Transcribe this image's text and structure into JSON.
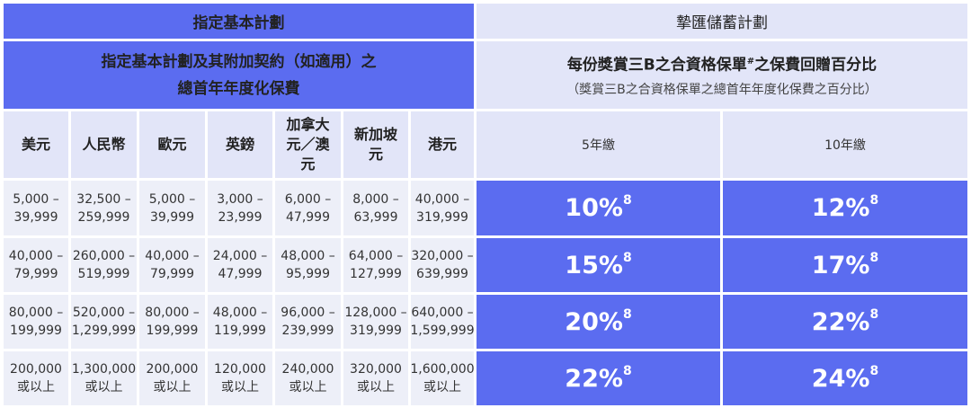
{
  "header": {
    "left": "指定基本計劃",
    "right": "摯匯儲蓄計劃"
  },
  "subheader": {
    "left_lines": [
      "指定基本計劃及其附加契約（如適用）之",
      "總首年年度化保費"
    ],
    "right_title": "每份獎賞三B之合資格保單",
    "right_title_mark": "#",
    "right_title_end": "之保費回贈百分比",
    "right_subtitle": "（獎賞三B之合資格保單之總首年年度化保費之百分比）"
  },
  "columns": {
    "currencies": [
      "美元",
      "人民幣",
      "歐元",
      "英鎊",
      "加拿大元／澳元",
      "新加坡元",
      "港元"
    ],
    "terms": [
      "5年繳",
      "10年繳"
    ]
  },
  "table": {
    "rows": [
      {
        "ranges": [
          [
            "5,000 –",
            "39,999"
          ],
          [
            "32,500 –",
            "259,999"
          ],
          [
            "5,000 –",
            "39,999"
          ],
          [
            "3,000 –",
            "23,999"
          ],
          [
            "6,000 –",
            "47,999"
          ],
          [
            "8,000 –",
            "63,999"
          ],
          [
            "40,000 –",
            "319,999"
          ]
        ],
        "rates": [
          {
            "rate": "10%",
            "note": "8"
          },
          {
            "rate": "12%",
            "note": "8"
          }
        ]
      },
      {
        "ranges": [
          [
            "40,000 –",
            "79,999"
          ],
          [
            "260,000 –",
            "519,999"
          ],
          [
            "40,000 –",
            "79,999"
          ],
          [
            "24,000 –",
            "47,999"
          ],
          [
            "48,000 –",
            "95,999"
          ],
          [
            "64,000 –",
            "127,999"
          ],
          [
            "320,000 –",
            "639,999"
          ]
        ],
        "rates": [
          {
            "rate": "15%",
            "note": "8"
          },
          {
            "rate": "17%",
            "note": "8"
          }
        ]
      },
      {
        "ranges": [
          [
            "80,000 –",
            "199,999"
          ],
          [
            "520,000 –",
            "1,299,999"
          ],
          [
            "80,000 –",
            "199,999"
          ],
          [
            "48,000 –",
            "119,999"
          ],
          [
            "96,000 –",
            "239,999"
          ],
          [
            "128,000 –",
            "319,999"
          ],
          [
            "640,000 –",
            "1,599,999"
          ]
        ],
        "rates": [
          {
            "rate": "20%",
            "note": "8"
          },
          {
            "rate": "22%",
            "note": "8"
          }
        ]
      },
      {
        "ranges": [
          [
            "200,000",
            "或以上"
          ],
          [
            "1,300,000",
            "或以上"
          ],
          [
            "200,000",
            "或以上"
          ],
          [
            "120,000",
            "或以上"
          ],
          [
            "240,000",
            "或以上"
          ],
          [
            "320,000",
            "或以上"
          ],
          [
            "1,600,000",
            "或以上"
          ]
        ],
        "rates": [
          {
            "rate": "22%",
            "note": "8"
          },
          {
            "rate": "24%",
            "note": "8"
          }
        ]
      }
    ]
  }
}
